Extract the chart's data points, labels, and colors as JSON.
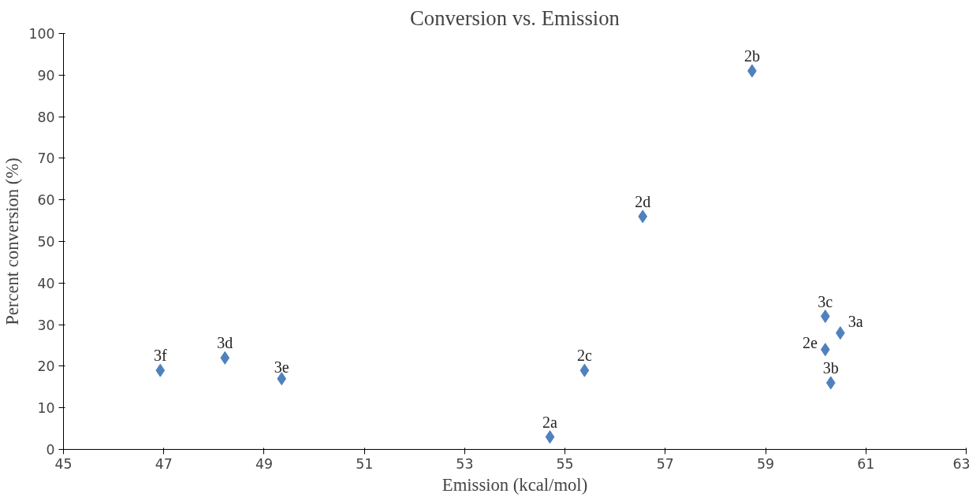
{
  "chart_data": {
    "type": "scatter",
    "title": "Conversion vs. Emission",
    "xlabel": "Emission (kcal/mol)",
    "ylabel": "Percent conversion (%)",
    "x": [
      46.93,
      48.22,
      49.35,
      54.7,
      55.39,
      56.55,
      58.73,
      60.19,
      60.49,
      60.19,
      60.3
    ],
    "series": [
      {
        "color": "#4f81bd",
        "values": [
          19,
          22,
          17,
          3,
          19,
          56,
          91,
          32,
          28,
          24,
          16
        ]
      }
    ],
    "value_labels": [
      "3f",
      "3d",
      "3e",
      "2a",
      "2c",
      "2d",
      "2b",
      "3c",
      "3a",
      "2e",
      "3b"
    ],
    "xlim": [
      45,
      63
    ],
    "xticks": [
      45,
      47,
      49,
      51,
      53,
      55,
      57,
      59,
      61,
      63
    ],
    "ylim": [
      0,
      100
    ],
    "yticks": [
      0,
      10,
      20,
      30,
      40,
      50,
      60,
      70,
      80,
      90,
      100
    ],
    "grid": false,
    "marker": "diamond"
  }
}
